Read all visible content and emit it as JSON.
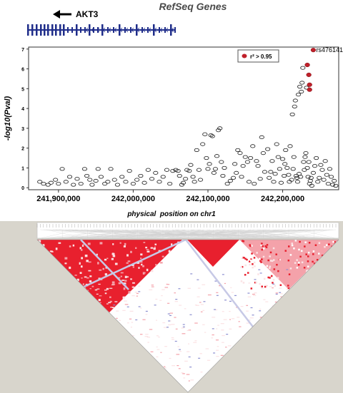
{
  "gene_track": {
    "title": "RefSeq Genes",
    "gene_name": "AKT3",
    "gene_color": "#1f2d8a"
  },
  "chart_data": {
    "type": "scatter",
    "title": "",
    "xlabel": "physical  position on chr1",
    "ylabel": "-log10(Pval)",
    "xlim": [
      241860000,
      242275000
    ],
    "ylim": [
      -0.1,
      7.1
    ],
    "x_ticks": [
      241900000,
      242000000,
      242100000,
      242200000
    ],
    "x_tick_labels": [
      "241,900,000",
      "242,000,000",
      "242,100,000",
      "242,200,000"
    ],
    "y_ticks": [
      0,
      1,
      2,
      3,
      4,
      5,
      6,
      7
    ],
    "y_tick_labels": [
      "0",
      "1",
      "2",
      "3",
      "4",
      "5",
      "6",
      "7"
    ],
    "legend": {
      "label": "r² > 0.95",
      "position": "top-right",
      "color": "#c0202a"
    },
    "annotations": [
      {
        "text": "rs476141",
        "x": 242241000,
        "y": 6.95
      }
    ],
    "series": [
      {
        "name": "r² > 0.95",
        "color": "#c0202a",
        "points": [
          [
            242241000,
            6.95
          ],
          [
            242233000,
            6.2
          ],
          [
            242235000,
            5.7
          ],
          [
            242236000,
            5.2
          ],
          [
            242236000,
            4.95
          ]
        ]
      },
      {
        "name": "",
        "color": "#222222",
        "points": [
          [
            241875000,
            0.3
          ],
          [
            241880000,
            0.2
          ],
          [
            241886000,
            0.15
          ],
          [
            241890000,
            0.25
          ],
          [
            241896000,
            0.4
          ],
          [
            241900000,
            0.2
          ],
          [
            241905000,
            0.95
          ],
          [
            241910000,
            0.3
          ],
          [
            241915000,
            0.55
          ],
          [
            241920000,
            0.15
          ],
          [
            241925000,
            0.45
          ],
          [
            241930000,
            0.2
          ],
          [
            241935000,
            0.95
          ],
          [
            241938000,
            0.6
          ],
          [
            241942000,
            0.4
          ],
          [
            241945000,
            0.15
          ],
          [
            241950000,
            0.35
          ],
          [
            241953000,
            0.95
          ],
          [
            241957000,
            0.55
          ],
          [
            241962000,
            0.2
          ],
          [
            241966000,
            0.3
          ],
          [
            241970000,
            0.95
          ],
          [
            241975000,
            0.4
          ],
          [
            241979000,
            0.15
          ],
          [
            241985000,
            0.55
          ],
          [
            241990000,
            0.3
          ],
          [
            241995000,
            0.85
          ],
          [
            242000000,
            0.2
          ],
          [
            242005000,
            0.4
          ],
          [
            242010000,
            0.6
          ],
          [
            242015000,
            0.25
          ],
          [
            242020000,
            0.9
          ],
          [
            242025000,
            0.45
          ],
          [
            242030000,
            0.75
          ],
          [
            242035000,
            0.3
          ],
          [
            242040000,
            0.55
          ],
          [
            242045000,
            0.9
          ],
          [
            242049000,
            0.2
          ],
          [
            242053000,
            0.85
          ],
          [
            242057000,
            0.9
          ],
          [
            242060000,
            0.85
          ],
          [
            242062000,
            0.6
          ],
          [
            242065000,
            0.15
          ],
          [
            242067000,
            0.25
          ],
          [
            242070000,
            0.45
          ],
          [
            242072000,
            0.9
          ],
          [
            242075000,
            0.85
          ],
          [
            242077000,
            1.15
          ],
          [
            242080000,
            0.55
          ],
          [
            242082000,
            0.3
          ],
          [
            242085000,
            1.9
          ],
          [
            242088000,
            0.9
          ],
          [
            242090000,
            0.4
          ],
          [
            242093000,
            2.2
          ],
          [
            242096000,
            2.7
          ],
          [
            242098000,
            1.5
          ],
          [
            242100000,
            0.95
          ],
          [
            242102000,
            1.2
          ],
          [
            242104000,
            2.65
          ],
          [
            242106000,
            2.6
          ],
          [
            242108000,
            0.75
          ],
          [
            242110000,
            0.95
          ],
          [
            242112000,
            1.6
          ],
          [
            242114000,
            2.9
          ],
          [
            242116000,
            3.0
          ],
          [
            242118000,
            1.3
          ],
          [
            242120000,
            0.6
          ],
          [
            242122000,
            1.0
          ],
          [
            242126000,
            0.2
          ],
          [
            242130000,
            0.35
          ],
          [
            242134000,
            0.5
          ],
          [
            242136000,
            1.2
          ],
          [
            242138000,
            0.75
          ],
          [
            242140000,
            1.9
          ],
          [
            242143000,
            1.75
          ],
          [
            242145000,
            0.55
          ],
          [
            242147000,
            1.1
          ],
          [
            242150000,
            1.55
          ],
          [
            242153000,
            1.3
          ],
          [
            242155000,
            0.3
          ],
          [
            242157000,
            1.5
          ],
          [
            242160000,
            2.1
          ],
          [
            242162000,
            0.2
          ],
          [
            242165000,
            1.35
          ],
          [
            242167000,
            1.1
          ],
          [
            242170000,
            0.45
          ],
          [
            242172000,
            2.55
          ],
          [
            242174000,
            1.75
          ],
          [
            242176000,
            0.8
          ],
          [
            242180000,
            1.95
          ],
          [
            242182000,
            0.5
          ],
          [
            242184000,
            0.8
          ],
          [
            242186000,
            1.35
          ],
          [
            242188000,
            0.3
          ],
          [
            242190000,
            0.7
          ],
          [
            242192000,
            2.2
          ],
          [
            242194000,
            1.55
          ],
          [
            242196000,
            0.95
          ],
          [
            242198000,
            0.25
          ],
          [
            242200000,
            1.45
          ],
          [
            242202000,
            0.6
          ],
          [
            242203000,
            1.2
          ],
          [
            242204000,
            1.9
          ],
          [
            242206000,
            1.0
          ],
          [
            242208000,
            0.65
          ],
          [
            242209000,
            0.3
          ],
          [
            242210000,
            2.1
          ],
          [
            242212000,
            0.4
          ],
          [
            242213000,
            3.7
          ],
          [
            242214000,
            0.95
          ],
          [
            242215000,
            1.55
          ],
          [
            242216000,
            4.1
          ],
          [
            242217000,
            4.4
          ],
          [
            242218000,
            0.6
          ],
          [
            242219000,
            0.5
          ],
          [
            242220000,
            0.3
          ],
          [
            242221000,
            4.7
          ],
          [
            242222000,
            0.7
          ],
          [
            242223000,
            5.1
          ],
          [
            242224000,
            0.55
          ],
          [
            242225000,
            4.85
          ],
          [
            242226000,
            5.3
          ],
          [
            242227000,
            6.05
          ],
          [
            242228000,
            1.3
          ],
          [
            242229000,
            0.9
          ],
          [
            242230000,
            1.55
          ],
          [
            242231000,
            1.75
          ],
          [
            242232000,
            5.05
          ],
          [
            242233000,
            1.0
          ],
          [
            242234000,
            0.55
          ],
          [
            242235000,
            1.3
          ],
          [
            242236000,
            0.2
          ],
          [
            242237000,
            0.35
          ],
          [
            242238000,
            0.5
          ],
          [
            242239000,
            0.1
          ],
          [
            242241000,
            0.75
          ],
          [
            242243000,
            1.1
          ],
          [
            242245000,
            1.5
          ],
          [
            242247000,
            0.3
          ],
          [
            242249000,
            0.5
          ],
          [
            242251000,
            1.15
          ],
          [
            242253000,
            0.9
          ],
          [
            242255000,
            0.4
          ],
          [
            242257000,
            1.35
          ],
          [
            242259000,
            0.65
          ],
          [
            242261000,
            0.2
          ],
          [
            242263000,
            0.95
          ],
          [
            242265000,
            0.55
          ],
          [
            242267000,
            0.15
          ],
          [
            242269000,
            0.35
          ],
          [
            242271000,
            0.1
          ]
        ]
      }
    ]
  },
  "ld_plot": {
    "high_color": "#e8202e",
    "mid_color": "#f4a2aa",
    "low_color": "#fbe2e4",
    "background": "#d8d5cc"
  }
}
